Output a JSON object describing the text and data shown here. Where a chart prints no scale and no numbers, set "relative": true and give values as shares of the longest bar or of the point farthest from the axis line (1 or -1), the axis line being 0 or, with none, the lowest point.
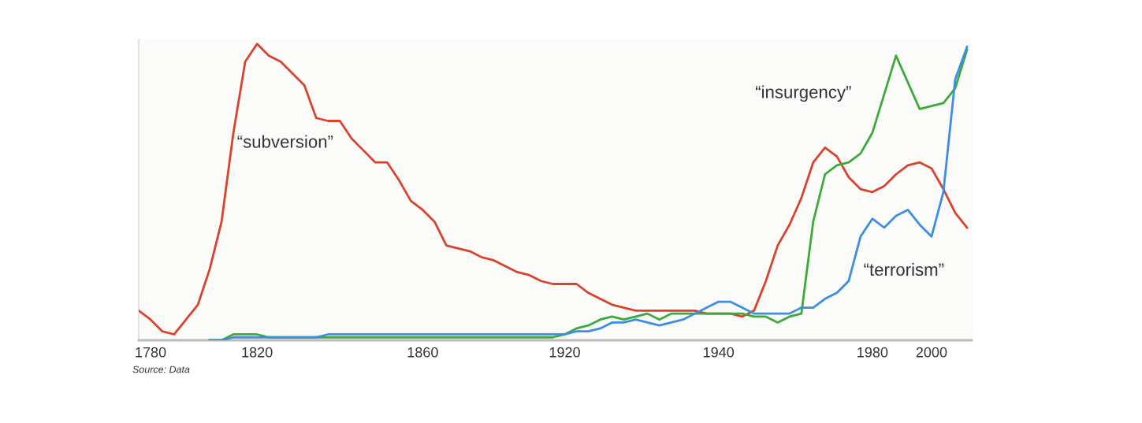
{
  "chart_data": {
    "type": "line",
    "relative": true,
    "categories": [
      null,
      "1780",
      null,
      null,
      null,
      null,
      null,
      null,
      null,
      null,
      "1820",
      null,
      null,
      null,
      null,
      null,
      null,
      null,
      null,
      null,
      null,
      null,
      null,
      null,
      "1860",
      null,
      null,
      null,
      null,
      null,
      null,
      null,
      null,
      null,
      null,
      null,
      "1920",
      null,
      null,
      null,
      null,
      null,
      null,
      null,
      null,
      null,
      null,
      null,
      null,
      "1940",
      null,
      null,
      null,
      null,
      null,
      null,
      null,
      null,
      null,
      null,
      null,
      null,
      "1980",
      null,
      null,
      null,
      null,
      "2000",
      null,
      null,
      null
    ],
    "series": [
      {
        "name": "“subversion”",
        "color": "#d9432e",
        "values": [
          0.1,
          0.07,
          0.03,
          0.02,
          0.07,
          0.12,
          0.24,
          0.4,
          0.7,
          0.94,
          1.0,
          0.96,
          0.94,
          0.9,
          0.86,
          0.75,
          0.74,
          0.74,
          0.68,
          0.64,
          0.6,
          0.6,
          0.54,
          0.47,
          0.44,
          0.4,
          0.32,
          0.31,
          0.3,
          0.28,
          0.27,
          0.25,
          0.23,
          0.22,
          0.2,
          0.19,
          0.19,
          0.19,
          0.16,
          0.14,
          0.12,
          0.11,
          0.1,
          0.1,
          0.1,
          0.1,
          0.1,
          0.1,
          0.09,
          0.09,
          0.09,
          0.08,
          0.1,
          0.2,
          0.32,
          0.39,
          0.48,
          0.6,
          0.65,
          0.62,
          0.55,
          0.51,
          0.5,
          0.52,
          0.56,
          0.59,
          0.6,
          0.58,
          0.51,
          0.43,
          0.38
        ]
      },
      {
        "name": "“insurgency”",
        "color": "#3aaa3a",
        "values": [
          null,
          null,
          null,
          null,
          null,
          null,
          0,
          0,
          0.02,
          0.02,
          0.02,
          0.01,
          0.01,
          0.01,
          0.01,
          0.01,
          0.01,
          0.01,
          0.01,
          0.01,
          0.01,
          0.01,
          0.01,
          0.01,
          0.01,
          0.01,
          0.01,
          0.01,
          0.01,
          0.01,
          0.01,
          0.01,
          0.01,
          0.01,
          0.01,
          0.01,
          0.02,
          0.04,
          0.05,
          0.07,
          0.08,
          0.07,
          0.08,
          0.09,
          0.07,
          0.09,
          0.09,
          0.09,
          0.09,
          0.09,
          0.09,
          0.09,
          0.08,
          0.08,
          0.06,
          0.08,
          0.09,
          0.4,
          0.56,
          0.59,
          0.6,
          0.63,
          0.7,
          0.83,
          0.96,
          0.87,
          0.78,
          0.79,
          0.8,
          0.85,
          0.98
        ]
      },
      {
        "name": "“terrorism”",
        "color": "#3b8ee0",
        "values": [
          null,
          null,
          null,
          null,
          null,
          null,
          0,
          0,
          0.01,
          0.01,
          0.01,
          0.01,
          0.01,
          0.01,
          0.01,
          0.01,
          0.02,
          0.02,
          0.02,
          0.02,
          0.02,
          0.02,
          0.02,
          0.02,
          0.02,
          0.02,
          0.02,
          0.02,
          0.02,
          0.02,
          0.02,
          0.02,
          0.02,
          0.02,
          0.02,
          0.02,
          0.02,
          0.03,
          0.03,
          0.04,
          0.06,
          0.06,
          0.07,
          0.06,
          0.05,
          0.06,
          0.07,
          0.09,
          0.11,
          0.13,
          0.13,
          0.11,
          0.09,
          0.09,
          0.09,
          0.09,
          0.11,
          0.11,
          0.14,
          0.16,
          0.2,
          0.35,
          0.41,
          0.38,
          0.42,
          0.44,
          0.39,
          0.35,
          0.5,
          0.88,
          0.99
        ]
      }
    ],
    "annotations": [
      "Source: Data"
    ],
    "grid": false,
    "legend": false,
    "marker": "none",
    "line_style": "solid"
  }
}
